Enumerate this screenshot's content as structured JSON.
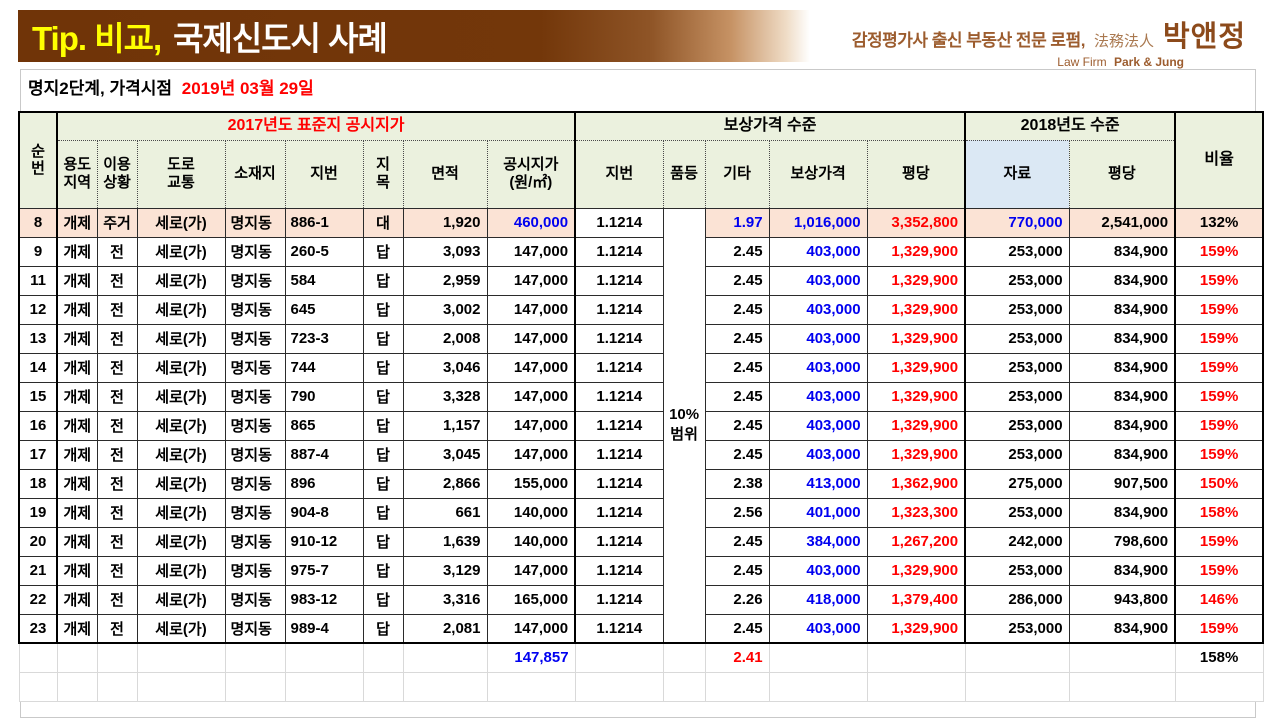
{
  "title": {
    "highlight": "Tip. 비교,",
    "rest": "국제신도시 사례"
  },
  "logo": {
    "tagline": "감정평가사 출신 부동산 전문 로펌,",
    "firm_cn": "法務法人",
    "brand": "박앤정",
    "firm_en_prefix": "Law Firm",
    "firm_en_name": "Park & Jung"
  },
  "subtitle": {
    "prefix": "명지2단계, 가격시점",
    "date": "2019년 03월 29일"
  },
  "table": {
    "headers": {
      "no": "순\n번",
      "group_2017": "2017년도 표준지 공시지가",
      "group_comp": "보상가격 수준",
      "group_2018": "2018년도 수준",
      "ratio": "비율",
      "zone": "용도\n지역",
      "use": "이용\n상황",
      "road": "도로\n교통",
      "location": "소재지",
      "lot": "지번",
      "category": "지\n목",
      "area": "면적",
      "official_price": "공시지가\n(원/㎡)",
      "lot2": "지번",
      "grade": "품등",
      "etc": "기타",
      "comp_price": "보상가격",
      "pyeong": "평당",
      "data_2018": "자료",
      "pyeong_2018": "평당"
    },
    "grade_note": "10%\n범위",
    "rows": [
      {
        "highlight": true,
        "cells": [
          "8",
          "개제",
          "주거",
          "세로(가)",
          "명지동",
          "886-1",
          "대",
          "1,920",
          "460,000",
          "1.1214",
          "1.97",
          "1,016,000",
          "3,352,800",
          "770,000",
          "2,541,000",
          "132%"
        ]
      },
      {
        "highlight": false,
        "cells": [
          "9",
          "개제",
          "전",
          "세로(가)",
          "명지동",
          "260-5",
          "답",
          "3,093",
          "147,000",
          "1.1214",
          "2.45",
          "403,000",
          "1,329,900",
          "253,000",
          "834,900",
          "159%"
        ]
      },
      {
        "highlight": false,
        "cells": [
          "11",
          "개제",
          "전",
          "세로(가)",
          "명지동",
          "584",
          "답",
          "2,959",
          "147,000",
          "1.1214",
          "2.45",
          "403,000",
          "1,329,900",
          "253,000",
          "834,900",
          "159%"
        ]
      },
      {
        "highlight": false,
        "cells": [
          "12",
          "개제",
          "전",
          "세로(가)",
          "명지동",
          "645",
          "답",
          "3,002",
          "147,000",
          "1.1214",
          "2.45",
          "403,000",
          "1,329,900",
          "253,000",
          "834,900",
          "159%"
        ]
      },
      {
        "highlight": false,
        "cells": [
          "13",
          "개제",
          "전",
          "세로(가)",
          "명지동",
          "723-3",
          "답",
          "2,008",
          "147,000",
          "1.1214",
          "2.45",
          "403,000",
          "1,329,900",
          "253,000",
          "834,900",
          "159%"
        ]
      },
      {
        "highlight": false,
        "cells": [
          "14",
          "개제",
          "전",
          "세로(가)",
          "명지동",
          "744",
          "답",
          "3,046",
          "147,000",
          "1.1214",
          "2.45",
          "403,000",
          "1,329,900",
          "253,000",
          "834,900",
          "159%"
        ]
      },
      {
        "highlight": false,
        "cells": [
          "15",
          "개제",
          "전",
          "세로(가)",
          "명지동",
          "790",
          "답",
          "3,328",
          "147,000",
          "1.1214",
          "2.45",
          "403,000",
          "1,329,900",
          "253,000",
          "834,900",
          "159%"
        ]
      },
      {
        "highlight": false,
        "cells": [
          "16",
          "개제",
          "전",
          "세로(가)",
          "명지동",
          "865",
          "답",
          "1,157",
          "147,000",
          "1.1214",
          "2.45",
          "403,000",
          "1,329,900",
          "253,000",
          "834,900",
          "159%"
        ]
      },
      {
        "highlight": false,
        "cells": [
          "17",
          "개제",
          "전",
          "세로(가)",
          "명지동",
          "887-4",
          "답",
          "3,045",
          "147,000",
          "1.1214",
          "2.45",
          "403,000",
          "1,329,900",
          "253,000",
          "834,900",
          "159%"
        ]
      },
      {
        "highlight": false,
        "cells": [
          "18",
          "개제",
          "전",
          "세로(가)",
          "명지동",
          "896",
          "답",
          "2,866",
          "155,000",
          "1.1214",
          "2.38",
          "413,000",
          "1,362,900",
          "275,000",
          "907,500",
          "150%"
        ]
      },
      {
        "highlight": false,
        "cells": [
          "19",
          "개제",
          "전",
          "세로(가)",
          "명지동",
          "904-8",
          "답",
          "661",
          "140,000",
          "1.1214",
          "2.56",
          "401,000",
          "1,323,300",
          "253,000",
          "834,900",
          "158%"
        ]
      },
      {
        "highlight": false,
        "cells": [
          "20",
          "개제",
          "전",
          "세로(가)",
          "명지동",
          "910-12",
          "답",
          "1,639",
          "140,000",
          "1.1214",
          "2.45",
          "384,000",
          "1,267,200",
          "242,000",
          "798,600",
          "159%"
        ]
      },
      {
        "highlight": false,
        "cells": [
          "21",
          "개제",
          "전",
          "세로(가)",
          "명지동",
          "975-7",
          "답",
          "3,129",
          "147,000",
          "1.1214",
          "2.45",
          "403,000",
          "1,329,900",
          "253,000",
          "834,900",
          "159%"
        ]
      },
      {
        "highlight": false,
        "cells": [
          "22",
          "개제",
          "전",
          "세로(가)",
          "명지동",
          "983-12",
          "답",
          "3,316",
          "165,000",
          "1.1214",
          "2.26",
          "418,000",
          "1,379,400",
          "286,000",
          "943,800",
          "146%"
        ]
      },
      {
        "highlight": false,
        "cells": [
          "23",
          "개제",
          "전",
          "세로(가)",
          "명지동",
          "989-4",
          "답",
          "2,081",
          "147,000",
          "1.1214",
          "2.45",
          "403,000",
          "1,329,900",
          "253,000",
          "834,900",
          "159%"
        ]
      }
    ],
    "summary": {
      "official_price": "147,857",
      "etc": "2.41",
      "ratio": "158%"
    }
  },
  "colors": {
    "accent_blue": "#0000f0",
    "accent_red": "#ff0000",
    "title_yellow": "#ffff00",
    "bar_brown": "#73370a",
    "logo_brown": "#9c5c2e",
    "brand_brown": "#8c4a1b",
    "header_green": "#ebf1de",
    "header_blue": "#dbe8f4",
    "row_highlight": "#fbe3d5"
  }
}
